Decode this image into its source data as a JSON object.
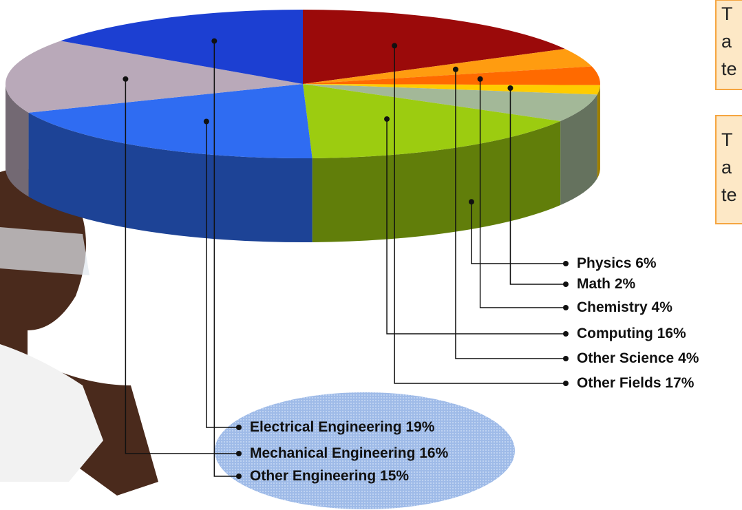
{
  "chart_data": {
    "type": "pie3d",
    "categories": [
      "Other Fields",
      "Other Science",
      "Chemistry",
      "Math",
      "Physics",
      "Computing",
      "Electrical Engineering",
      "Mechanical Engineering",
      "Other Engineering"
    ],
    "values": [
      17,
      4,
      4,
      2,
      6,
      16,
      19,
      16,
      15
    ],
    "value_labels": [
      "17%",
      "4%",
      "4%",
      "2%",
      "6%",
      "16%",
      "19%",
      "16%",
      "15%"
    ],
    "colors": [
      "#9b0a0a",
      "#ff9c10",
      "#ff6a00",
      "#ffcc00",
      "#a3b898",
      "#9ccc10",
      "#2f6cf2",
      "#b9a9b9",
      "#1c3fd2"
    ]
  },
  "annotations": [
    [
      "T",
      "a",
      "te"
    ],
    [
      "T",
      "a",
      "te"
    ]
  ]
}
